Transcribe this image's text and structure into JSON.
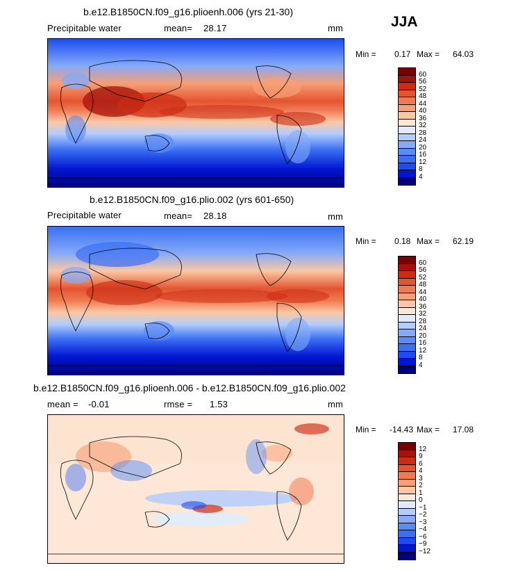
{
  "season": "JJA",
  "colors": {
    "precip": [
      "#00007f",
      "#0016d0",
      "#1e4cf0",
      "#3a6ff4",
      "#5b8cf6",
      "#84aaf8",
      "#b4cdfb",
      "#e0ecfd",
      "#fde8d8",
      "#fbc7a4",
      "#f79f76",
      "#f07a51",
      "#e45430",
      "#cc2c14",
      "#a5110a",
      "#7a0000"
    ],
    "diff": [
      "#00007f",
      "#0016d0",
      "#1e4cf0",
      "#3a6ff4",
      "#5b8cf6",
      "#84aaf8",
      "#b4cdfb",
      "#e0ecfd",
      "#fde8d8",
      "#fbc7a4",
      "#f79f76",
      "#f07a51",
      "#e45430",
      "#cc2c14",
      "#a5110a",
      "#7a0000"
    ]
  },
  "panels": [
    {
      "title": "b.e12.B1850CN.f09_g16.plioenh.006 (yrs 21-30)",
      "variable": "Precipitable water",
      "mean_label": "mean=",
      "mean_value": "28.17",
      "units": "mm",
      "min_label": "Min =",
      "min_value": "0.17",
      "max_label": "Max =",
      "max_value": "64.03"
    },
    {
      "title": "b.e12.B1850CN.f09_g16.plio.002 (yrs 601-650)",
      "variable": "Precipitable water",
      "mean_label": "mean=",
      "mean_value": "28.18",
      "units": "mm",
      "min_label": "Min =",
      "min_value": "0.18",
      "max_label": "Max =",
      "max_value": "62.19"
    },
    {
      "title": "b.e12.B1850CN.f09_g16.plioenh.006 - b.e12.B1850CN.f09_g16.plio.002",
      "variable": "",
      "mean_label": "mean =",
      "mean_value": "-0.01",
      "rmse_label": "rmse =",
      "rmse_value": "1.53",
      "units": "mm",
      "min_label": "Min =",
      "min_value": "-14.43",
      "max_label": "Max =",
      "max_value": "17.08"
    }
  ],
  "chart_data": [
    {
      "type": "heatmap",
      "title": "b.e12.B1850CN.f09_g16.plioenh.006 (yrs 21-30)",
      "variable": "Precipitable water",
      "units": "mm",
      "mean": 28.17,
      "min": 0.17,
      "max": 64.03,
      "colorbar_levels": [
        4,
        8,
        12,
        16,
        20,
        24,
        28,
        32,
        36,
        40,
        44,
        48,
        52,
        56,
        60
      ],
      "legend_position": "right"
    },
    {
      "type": "heatmap",
      "title": "b.e12.B1850CN.f09_g16.plio.002 (yrs 601-650)",
      "variable": "Precipitable water",
      "units": "mm",
      "mean": 28.18,
      "min": 0.18,
      "max": 62.19,
      "colorbar_levels": [
        4,
        8,
        12,
        16,
        20,
        24,
        28,
        32,
        36,
        40,
        44,
        48,
        52,
        56,
        60
      ],
      "legend_position": "right"
    },
    {
      "type": "heatmap",
      "title": "b.e12.B1850CN.f09_g16.plioenh.006 - b.e12.B1850CN.f09_g16.plio.002",
      "units": "mm",
      "mean": -0.01,
      "rmse": 1.53,
      "min": -14.43,
      "max": 17.08,
      "colorbar_levels": [
        -12,
        -9,
        -6,
        -4,
        -3,
        -2,
        -1,
        0,
        1,
        2,
        3,
        4,
        6,
        9,
        12
      ],
      "legend_position": "right"
    }
  ]
}
